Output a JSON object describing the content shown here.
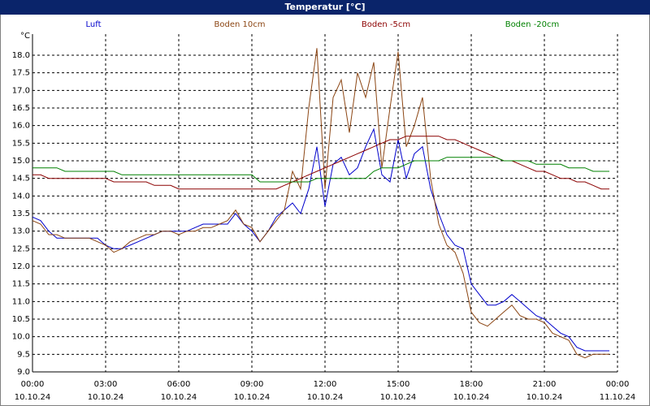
{
  "chart_data": {
    "type": "line",
    "title": "Temperatur [°C]",
    "y_unit": "°C",
    "x": [
      0,
      20,
      40,
      60,
      80,
      100,
      120,
      140,
      160,
      180,
      200,
      220,
      240,
      260,
      280,
      300,
      320,
      340,
      360,
      380,
      400,
      420,
      440,
      460,
      480,
      500,
      520,
      540,
      560,
      580,
      600,
      620,
      640,
      660,
      680,
      700,
      720,
      740,
      760,
      780,
      800,
      820,
      840,
      860,
      880,
      900,
      920,
      940,
      960,
      980,
      1000,
      1020,
      1040,
      1060,
      1080,
      1100,
      1120,
      1140,
      1160,
      1180,
      1200,
      1220,
      1240,
      1260,
      1280,
      1300,
      1320,
      1340,
      1360,
      1380,
      1400,
      1420
    ],
    "xlim": [
      0,
      1440
    ],
    "xticks": [
      {
        "value": 0,
        "label": "00:00"
      },
      {
        "value": 180,
        "label": "03:00"
      },
      {
        "value": 360,
        "label": "06:00"
      },
      {
        "value": 540,
        "label": "09:00"
      },
      {
        "value": 720,
        "label": "12:00"
      },
      {
        "value": 900,
        "label": "15:00"
      },
      {
        "value": 1080,
        "label": "18:00"
      },
      {
        "value": 1260,
        "label": "21:00"
      },
      {
        "value": 1440,
        "label": "00:00"
      }
    ],
    "xtick_dates": [
      "10.10.24",
      "10.10.24",
      "10.10.24",
      "10.10.24",
      "10.10.24",
      "10.10.24",
      "10.10.24",
      "10.10.24",
      "11.10.24"
    ],
    "ylim": [
      9,
      18.6
    ],
    "yticks": [
      {
        "value": 9,
        "label": "9.0"
      },
      9.5,
      {
        "value": 10,
        "label": "10.0"
      },
      10.5,
      {
        "value": 11,
        "label": "11.0"
      },
      11.5,
      {
        "value": 12,
        "label": "12.0"
      },
      12.5,
      {
        "value": 13,
        "label": "13.0"
      },
      13.5,
      {
        "value": 14,
        "label": "14.0"
      },
      14.5,
      {
        "value": 15,
        "label": "15.0"
      },
      15.5,
      {
        "value": 16,
        "label": "16.0"
      },
      16.5,
      {
        "value": 17,
        "label": "17.0"
      },
      17.5,
      {
        "value": 18,
        "label": "18.0"
      }
    ],
    "grid": true,
    "series": [
      {
        "name": "Luft",
        "color": "#0000cc",
        "values": [
          13.4,
          13.3,
          13.0,
          12.8,
          12.8,
          12.8,
          12.8,
          12.8,
          12.8,
          12.6,
          12.5,
          12.5,
          12.6,
          12.7,
          12.8,
          12.9,
          13.0,
          13.0,
          13.0,
          13.0,
          13.1,
          13.2,
          13.2,
          13.2,
          13.2,
          13.5,
          13.2,
          13.0,
          12.7,
          13.0,
          13.4,
          13.6,
          13.8,
          13.5,
          14.2,
          15.4,
          13.7,
          14.9,
          15.1,
          14.6,
          14.8,
          15.4,
          15.9,
          14.6,
          14.4,
          15.6,
          14.5,
          15.2,
          15.4,
          14.2,
          13.5,
          12.9,
          12.6,
          12.5,
          11.5,
          11.2,
          10.9,
          10.9,
          11.0,
          11.2,
          11.0,
          10.8,
          10.6,
          10.5,
          10.3,
          10.1,
          10.0,
          9.7,
          9.6,
          9.6,
          9.6,
          9.6
        ]
      },
      {
        "name": "Boden 10cm",
        "color": "#8b4513",
        "values": [
          13.3,
          13.2,
          12.9,
          12.9,
          12.8,
          12.8,
          12.8,
          12.8,
          12.7,
          12.6,
          12.4,
          12.5,
          12.7,
          12.8,
          12.9,
          12.9,
          13.0,
          13.0,
          12.9,
          13.0,
          13.0,
          13.1,
          13.1,
          13.2,
          13.3,
          13.6,
          13.2,
          13.1,
          12.7,
          13.0,
          13.3,
          13.6,
          14.7,
          14.2,
          16.5,
          18.2,
          14.2,
          16.8,
          17.3,
          15.8,
          17.5,
          16.8,
          17.8,
          14.8,
          16.5,
          18.1,
          15.4,
          16.0,
          16.8,
          14.5,
          13.2,
          12.6,
          12.4,
          11.8,
          10.7,
          10.4,
          10.3,
          10.5,
          10.7,
          10.9,
          10.6,
          10.5,
          10.5,
          10.4,
          10.1,
          10.0,
          9.9,
          9.5,
          9.4,
          9.5,
          9.5,
          9.5
        ]
      },
      {
        "name": "Boden -5cm",
        "color": "#8b0000",
        "values": [
          14.6,
          14.6,
          14.5,
          14.5,
          14.5,
          14.5,
          14.5,
          14.5,
          14.5,
          14.5,
          14.4,
          14.4,
          14.4,
          14.4,
          14.4,
          14.3,
          14.3,
          14.3,
          14.2,
          14.2,
          14.2,
          14.2,
          14.2,
          14.2,
          14.2,
          14.2,
          14.2,
          14.2,
          14.2,
          14.2,
          14.2,
          14.3,
          14.4,
          14.5,
          14.6,
          14.7,
          14.8,
          14.9,
          15.0,
          15.1,
          15.2,
          15.3,
          15.4,
          15.5,
          15.6,
          15.6,
          15.7,
          15.7,
          15.7,
          15.7,
          15.7,
          15.6,
          15.6,
          15.5,
          15.4,
          15.3,
          15.2,
          15.1,
          15.0,
          15.0,
          14.9,
          14.8,
          14.7,
          14.7,
          14.6,
          14.5,
          14.5,
          14.4,
          14.4,
          14.3,
          14.2,
          14.2
        ]
      },
      {
        "name": "Boden -20cm",
        "color": "#008000",
        "values": [
          14.8,
          14.8,
          14.8,
          14.8,
          14.7,
          14.7,
          14.7,
          14.7,
          14.7,
          14.7,
          14.7,
          14.6,
          14.6,
          14.6,
          14.6,
          14.6,
          14.6,
          14.6,
          14.6,
          14.6,
          14.6,
          14.6,
          14.6,
          14.6,
          14.6,
          14.6,
          14.6,
          14.6,
          14.4,
          14.4,
          14.4,
          14.4,
          14.4,
          14.4,
          14.4,
          14.5,
          14.5,
          14.5,
          14.5,
          14.5,
          14.5,
          14.5,
          14.7,
          14.8,
          14.8,
          14.8,
          14.9,
          15.0,
          15.0,
          15.0,
          15.0,
          15.1,
          15.1,
          15.1,
          15.1,
          15.1,
          15.1,
          15.1,
          15.0,
          15.0,
          15.0,
          15.0,
          14.9,
          14.9,
          14.9,
          14.9,
          14.8,
          14.8,
          14.8,
          14.7,
          14.7,
          14.7
        ]
      }
    ]
  }
}
